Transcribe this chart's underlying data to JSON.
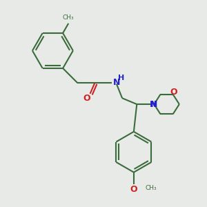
{
  "bg_color": "#e8eae8",
  "bond_color": "#3a6b3a",
  "N_color": "#2222cc",
  "O_color": "#cc2222",
  "line_width": 1.5,
  "fig_size": [
    3.0,
    3.0
  ],
  "dpi": 100,
  "xlim": [
    0,
    10
  ],
  "ylim": [
    0,
    10
  ]
}
